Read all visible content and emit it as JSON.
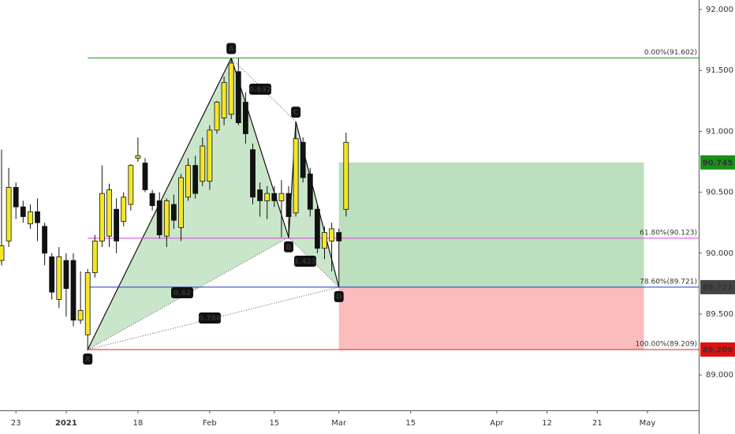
{
  "chart_data": {
    "type": "candlestick",
    "x": [
      0,
      1,
      2,
      3,
      4,
      5,
      6,
      7,
      8,
      9,
      10,
      11,
      12,
      13,
      14,
      15,
      16,
      17,
      18,
      19,
      20,
      21,
      22,
      23,
      24,
      25,
      26,
      27,
      28,
      29,
      30,
      31,
      32,
      33,
      34,
      35,
      36,
      37,
      38,
      39,
      40,
      41,
      42,
      43,
      44,
      45,
      46,
      47,
      48
    ],
    "open": [
      89.94,
      90.1,
      90.54,
      90.38,
      90.24,
      90.34,
      90.22,
      89.97,
      89.62,
      89.94,
      89.94,
      89.45,
      89.33,
      89.84,
      90.1,
      90.14,
      90.36,
      90.26,
      90.4,
      90.78,
      90.74,
      90.49,
      90.43,
      90.14,
      90.4,
      90.21,
      90.46,
      90.72,
      90.59,
      90.59,
      91.01,
      91.11,
      91.14,
      91.49,
      91.24,
      90.85,
      90.52,
      90.43,
      90.49,
      90.43,
      90.49,
      90.33,
      90.91,
      90.65,
      90.36,
      90.04,
      90.1,
      90.17,
      90.36
    ],
    "high": [
      90.85,
      90.7,
      90.58,
      90.43,
      90.4,
      90.45,
      90.25,
      90.0,
      90.05,
      90.0,
      90.0,
      89.85,
      89.87,
      90.15,
      90.72,
      90.57,
      90.45,
      90.5,
      90.73,
      90.95,
      90.78,
      90.52,
      90.5,
      90.45,
      90.48,
      90.65,
      90.78,
      90.8,
      90.95,
      91.05,
      91.25,
      91.45,
      91.6,
      91.6,
      91.32,
      90.9,
      90.58,
      90.55,
      90.55,
      90.6,
      90.55,
      91.08,
      90.95,
      90.7,
      90.4,
      90.22,
      90.25,
      90.2,
      90.99
    ],
    "low": [
      89.9,
      90.05,
      90.28,
      90.25,
      90.2,
      90.1,
      89.9,
      89.62,
      89.55,
      89.48,
      89.4,
      89.42,
      89.2,
      89.8,
      90.05,
      90.05,
      90.0,
      90.22,
      90.35,
      90.75,
      90.5,
      90.35,
      90.12,
      90.05,
      90.2,
      90.1,
      90.43,
      90.45,
      90.55,
      90.52,
      90.98,
      91.05,
      91.1,
      91.05,
      90.9,
      90.4,
      90.3,
      90.28,
      90.38,
      90.13,
      90.12,
      90.3,
      90.58,
      90.3,
      90.0,
      89.95,
      89.85,
      89.72,
      90.3
    ],
    "close": [
      90.06,
      90.54,
      90.38,
      90.3,
      90.34,
      90.25,
      90.0,
      89.68,
      89.97,
      89.71,
      89.45,
      89.53,
      89.84,
      90.1,
      90.49,
      90.52,
      90.1,
      90.46,
      90.72,
      90.8,
      90.52,
      90.39,
      90.15,
      90.43,
      90.27,
      90.62,
      90.72,
      90.49,
      90.88,
      91.01,
      91.24,
      91.4,
      91.56,
      91.07,
      90.98,
      90.46,
      90.43,
      90.49,
      90.43,
      90.49,
      90.3,
      90.94,
      90.62,
      90.36,
      90.04,
      90.17,
      90.2,
      90.1,
      90.91
    ],
    "up_color": "#f5e727",
    "down_color": "#111111",
    "xlim": [
      -0.22,
      97.14
    ],
    "ylim": [
      88.71,
      92.078
    ],
    "xticks": [
      {
        "value": 2,
        "label": "23"
      },
      {
        "value": 9,
        "label": "2021"
      },
      {
        "value": 19,
        "label": "18"
      },
      {
        "value": 29,
        "label": "Feb"
      },
      {
        "value": 38,
        "label": "15"
      },
      {
        "value": 47,
        "label": "Mar"
      },
      {
        "value": 57,
        "label": "15"
      },
      {
        "value": 69,
        "label": "Apr"
      },
      {
        "value": 76,
        "label": "12"
      },
      {
        "value": 83,
        "label": "21"
      },
      {
        "value": 90,
        "label": "May"
      }
    ],
    "yticks": [
      {
        "value": 92,
        "label": "92.000"
      },
      {
        "value": 91.5,
        "label": "91.500"
      },
      {
        "value": 91,
        "label": "91.000"
      },
      {
        "value": 90.5,
        "label": "90.500"
      },
      {
        "value": 90,
        "label": "90.000"
      },
      {
        "value": 89.5,
        "label": "89.500"
      },
      {
        "value": 89,
        "label": "89.000"
      }
    ],
    "fib_levels": [
      {
        "value": 91.602,
        "label": "0.00%(91.602)",
        "color": "#2e9a2e"
      },
      {
        "value": 90.123,
        "label": "61.80%(90.123)",
        "color": "#e040e0"
      },
      {
        "value": 89.721,
        "label": "78.60%(89.721)",
        "color": "#2233cc"
      },
      {
        "value": 89.209,
        "label": "100.00%(89.209)",
        "color": "#e02020"
      }
    ],
    "pattern": {
      "points": [
        {
          "label": "X",
          "x": 12,
          "y": 89.209
        },
        {
          "label": "A",
          "x": 32,
          "y": 91.602
        },
        {
          "label": "B",
          "x": 40,
          "y": 90.13
        },
        {
          "label": "C",
          "x": 41,
          "y": 91.08
        },
        {
          "label": "D",
          "x": 47,
          "y": 89.721
        }
      ],
      "ratios": [
        "0.632",
        "0.62",
        "0.786",
        "1.423"
      ],
      "fill": "#a5d6a7"
    },
    "position": {
      "x_start": 47,
      "x_end": 89.5,
      "target": 90.745,
      "entry": 89.721,
      "stop": 89.209,
      "profit_color": "#a5d6a7",
      "loss_color": "#f8a5a5"
    },
    "price_labels": [
      {
        "value": 90.745,
        "color": "#1b8f1b"
      },
      {
        "value": 89.721,
        "color": "#444444"
      },
      {
        "value": 89.209,
        "color": "#e01010"
      }
    ]
  }
}
